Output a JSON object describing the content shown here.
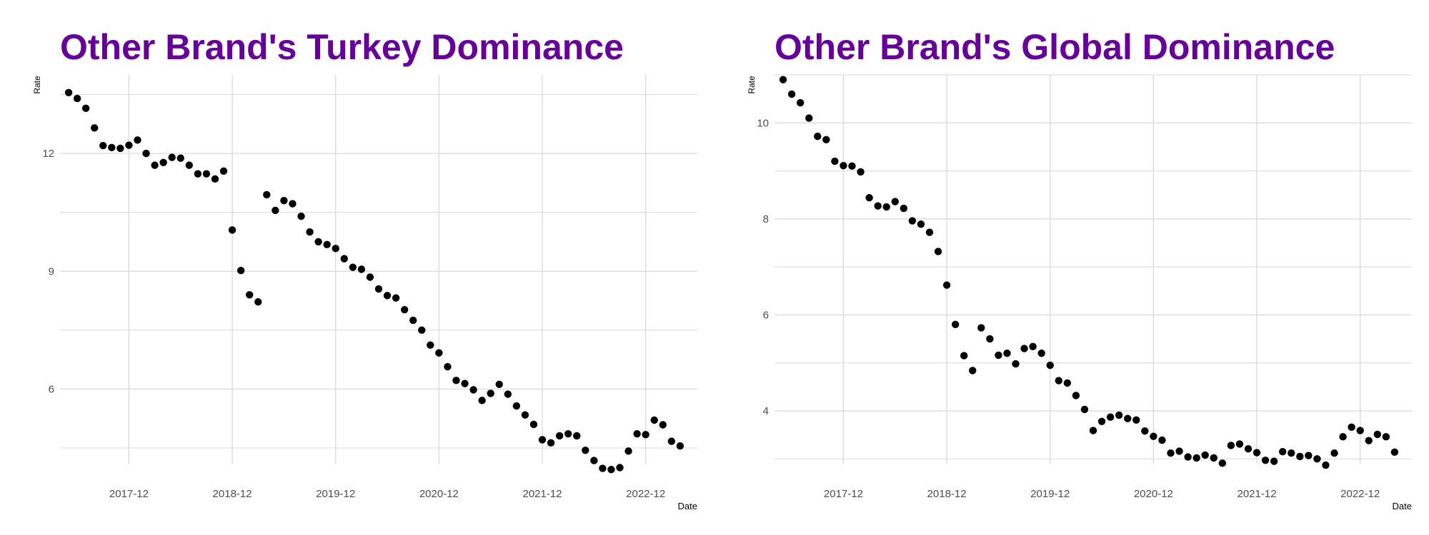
{
  "style": {
    "title_color": "#660099",
    "grid_color": "#d9d9d9",
    "point_color": "#000000",
    "tick_color": "#4d4d4d"
  },
  "chart_data": [
    {
      "type": "scatter",
      "title": "Other Brand's Turkey Dominance",
      "xlabel": "Date",
      "ylabel": "Rate",
      "xticks": [
        "2017-12",
        "2018-12",
        "2019-12",
        "2020-12",
        "2021-12",
        "2022-12"
      ],
      "yticks": [
        6,
        9,
        12
      ],
      "xlim": [
        "2017-04",
        "2023-06"
      ],
      "ylim": [
        4.1,
        14.0
      ],
      "grid": true,
      "series": [
        {
          "x": [
            "2017-05",
            "2017-06",
            "2017-07",
            "2017-08",
            "2017-09",
            "2017-10",
            "2017-11",
            "2017-12",
            "2018-01",
            "2018-02",
            "2018-03",
            "2018-04",
            "2018-05",
            "2018-06",
            "2018-07",
            "2018-08",
            "2018-09",
            "2018-10",
            "2018-11",
            "2018-12",
            "2019-01",
            "2019-02",
            "2019-03",
            "2019-04",
            "2019-05",
            "2019-06",
            "2019-07",
            "2019-08",
            "2019-09",
            "2019-10",
            "2019-11",
            "2019-12",
            "2020-01",
            "2020-02",
            "2020-03",
            "2020-04",
            "2020-05",
            "2020-06",
            "2020-07",
            "2020-08",
            "2020-09",
            "2020-10",
            "2020-11",
            "2020-12",
            "2021-01",
            "2021-02",
            "2021-03",
            "2021-04",
            "2021-05",
            "2021-06",
            "2021-07",
            "2021-08",
            "2021-09",
            "2021-10",
            "2021-11",
            "2021-12",
            "2022-01",
            "2022-02",
            "2022-03",
            "2022-04",
            "2022-05",
            "2022-06",
            "2022-07",
            "2022-08",
            "2022-09",
            "2022-10",
            "2022-11",
            "2022-12",
            "2023-01",
            "2023-02",
            "2023-03",
            "2023-04"
          ],
          "y": [
            13.55,
            13.4,
            13.15,
            12.65,
            12.2,
            12.15,
            12.13,
            12.21,
            12.34,
            12.0,
            11.7,
            11.77,
            11.9,
            11.88,
            11.7,
            11.48,
            11.48,
            11.35,
            11.55,
            10.05,
            9.02,
            8.4,
            8.22,
            10.95,
            10.55,
            10.8,
            10.72,
            10.4,
            10.0,
            9.75,
            9.68,
            9.58,
            9.32,
            9.1,
            9.05,
            8.85,
            8.55,
            8.38,
            8.32,
            8.02,
            7.75,
            7.5,
            7.12,
            6.92,
            6.57,
            6.22,
            6.14,
            5.98,
            5.71,
            5.89,
            6.12,
            5.87,
            5.57,
            5.34,
            5.1,
            4.71,
            4.63,
            4.81,
            4.86,
            4.81,
            4.44,
            4.18,
            3.98,
            3.95,
            4.0,
            4.42,
            4.86,
            4.84,
            5.21,
            5.09,
            4.67,
            4.55
          ]
        }
      ]
    },
    {
      "type": "scatter",
      "title": "Other Brand's Global Dominance",
      "xlabel": "Date",
      "ylabel": "Rate",
      "xticks": [
        "2017-12",
        "2018-12",
        "2019-12",
        "2020-12",
        "2021-12",
        "2022-12"
      ],
      "yticks": [
        4,
        6,
        8,
        10
      ],
      "xlim": [
        "2017-04",
        "2023-06"
      ],
      "ylim": [
        2.9,
        11.0
      ],
      "grid": true,
      "series": [
        {
          "x": [
            "2017-05",
            "2017-06",
            "2017-07",
            "2017-08",
            "2017-09",
            "2017-10",
            "2017-11",
            "2017-12",
            "2018-01",
            "2018-02",
            "2018-03",
            "2018-04",
            "2018-05",
            "2018-06",
            "2018-07",
            "2018-08",
            "2018-09",
            "2018-10",
            "2018-11",
            "2018-12",
            "2019-01",
            "2019-02",
            "2019-03",
            "2019-04",
            "2019-05",
            "2019-06",
            "2019-07",
            "2019-08",
            "2019-09",
            "2019-10",
            "2019-11",
            "2019-12",
            "2020-01",
            "2020-02",
            "2020-03",
            "2020-04",
            "2020-05",
            "2020-06",
            "2020-07",
            "2020-08",
            "2020-09",
            "2020-10",
            "2020-11",
            "2020-12",
            "2021-01",
            "2021-02",
            "2021-03",
            "2021-04",
            "2021-05",
            "2021-06",
            "2021-07",
            "2021-08",
            "2021-09",
            "2021-10",
            "2021-11",
            "2021-12",
            "2022-01",
            "2022-02",
            "2022-03",
            "2022-04",
            "2022-05",
            "2022-06",
            "2022-07",
            "2022-08",
            "2022-09",
            "2022-10",
            "2022-11",
            "2022-12",
            "2023-01",
            "2023-02",
            "2023-03",
            "2023-04"
          ],
          "y": [
            10.9,
            10.6,
            10.42,
            10.1,
            9.72,
            9.65,
            9.2,
            9.11,
            9.1,
            8.98,
            8.44,
            8.27,
            8.25,
            8.36,
            8.22,
            7.96,
            7.89,
            7.72,
            7.32,
            6.62,
            5.8,
            5.15,
            4.84,
            5.73,
            5.5,
            5.16,
            5.2,
            4.98,
            5.3,
            5.34,
            5.2,
            4.95,
            4.63,
            4.58,
            4.32,
            4.03,
            3.59,
            3.78,
            3.87,
            3.91,
            3.84,
            3.81,
            3.58,
            3.47,
            3.39,
            3.12,
            3.16,
            3.04,
            3.02,
            3.08,
            3.02,
            2.91,
            3.28,
            3.31,
            3.21,
            3.13,
            2.97,
            2.95,
            3.15,
            3.12,
            3.05,
            3.07,
            3.0,
            2.87,
            3.12,
            3.46,
            3.66,
            3.59,
            3.38,
            3.51,
            3.46,
            3.14
          ]
        }
      ]
    }
  ]
}
